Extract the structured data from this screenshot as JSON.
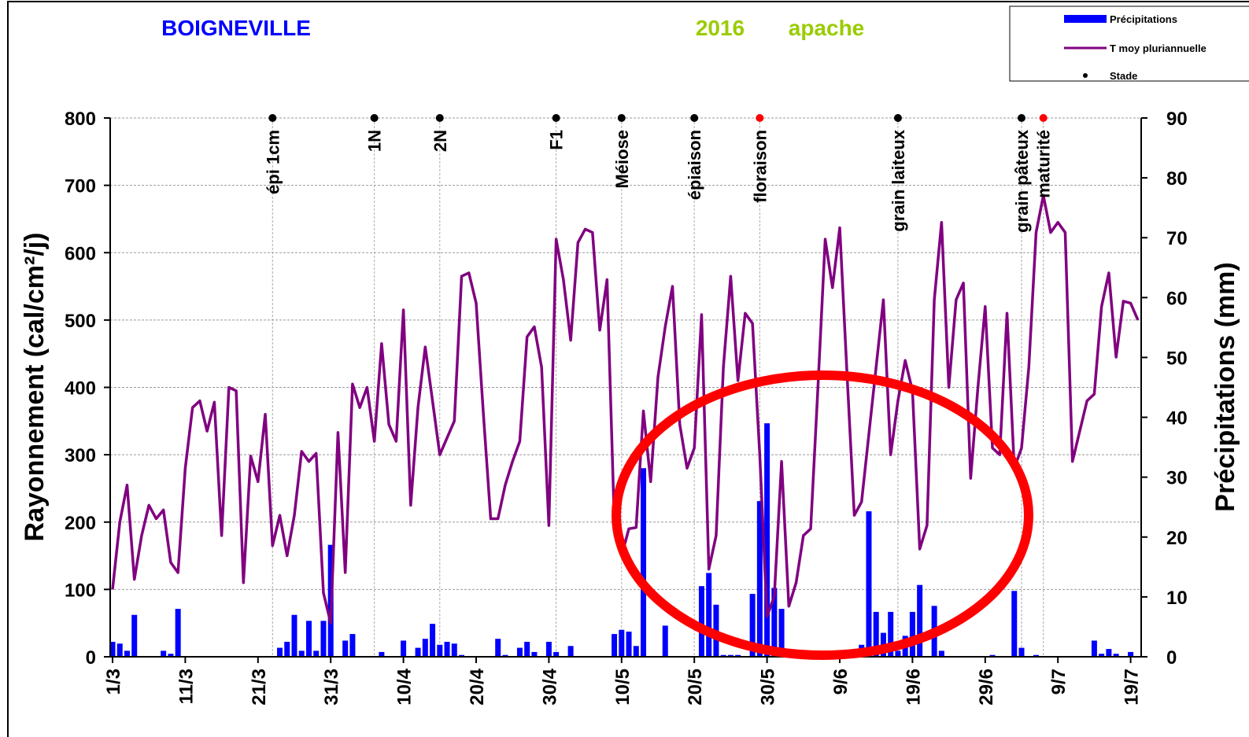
{
  "chart_data": {
    "type": "bar",
    "title": "BOIGNEVILLE",
    "subtitle": [
      "2016",
      "apache"
    ],
    "y_label": "Rayonnement (cal/cm²/j)",
    "y2_label": "Précipitations (mm)",
    "categories": [
      "1/3",
      null,
      null,
      null,
      null,
      null,
      null,
      null,
      null,
      null,
      "11/3",
      null,
      null,
      null,
      null,
      null,
      null,
      null,
      null,
      null,
      "21/3",
      null,
      null,
      null,
      null,
      null,
      null,
      null,
      null,
      null,
      "31/3",
      null,
      null,
      null,
      null,
      null,
      null,
      null,
      null,
      null,
      "10/4",
      null,
      null,
      null,
      null,
      null,
      null,
      null,
      null,
      null,
      "20/4",
      null,
      null,
      null,
      null,
      null,
      null,
      null,
      null,
      null,
      "30/4",
      null,
      null,
      null,
      null,
      null,
      null,
      null,
      null,
      null,
      "10/5",
      null,
      null,
      null,
      null,
      null,
      null,
      null,
      null,
      null,
      "20/5",
      null,
      null,
      null,
      null,
      null,
      null,
      null,
      null,
      null,
      "30/5",
      null,
      null,
      null,
      null,
      null,
      null,
      null,
      null,
      null,
      "9/6",
      null,
      null,
      null,
      null,
      null,
      null,
      null,
      null,
      null,
      "19/6",
      null,
      null,
      null,
      null,
      null,
      null,
      null,
      null,
      null,
      "29/6",
      null,
      null,
      null,
      null,
      null,
      null,
      null,
      null,
      null,
      "9/7",
      null,
      null,
      null,
      null,
      null,
      null,
      null,
      null,
      null,
      "19/7",
      null
    ],
    "series": [
      {
        "name": "Précipitations",
        "type": "bar",
        "axis": "y2",
        "color": "#0000ff",
        "values": [
          2.5,
          2.2,
          1,
          7,
          0,
          0,
          0,
          1,
          0.5,
          8,
          0,
          0,
          0,
          0,
          0,
          0,
          0,
          0,
          0,
          0,
          0,
          0,
          0,
          1.5,
          2.5,
          7,
          1,
          6,
          1,
          6,
          18.7,
          0,
          2.7,
          3.8,
          0,
          0,
          0,
          0.8,
          0,
          0,
          2.7,
          0,
          1.5,
          3,
          5.5,
          2,
          2.5,
          2.2,
          0.3,
          0,
          0,
          0,
          0,
          3,
          0.3,
          0,
          1.5,
          2.5,
          0.8,
          0,
          2.5,
          0.8,
          0,
          1.8,
          0,
          0,
          0,
          0,
          0,
          3.8,
          4.5,
          4.2,
          1.8,
          31.5,
          0,
          0,
          5.2,
          0,
          0,
          0,
          0,
          11.8,
          14,
          8.7,
          0.3,
          0.3,
          0.3,
          0,
          10.5,
          26,
          39,
          11.5,
          8,
          0.8,
          0.3,
          0.3,
          0.3,
          0,
          0,
          0,
          0,
          0.3,
          0,
          2,
          24.3,
          7.5,
          4,
          7.5,
          1,
          3.5,
          7.5,
          12,
          0,
          8.5,
          1,
          0,
          0,
          0,
          0,
          0,
          0,
          0.3,
          0,
          0,
          11,
          1.5,
          0,
          0.3,
          0,
          0,
          0,
          0,
          0,
          0,
          0,
          2.7,
          0.5,
          1.3,
          0.5,
          0,
          0.8,
          0
        ]
      },
      {
        "name": "T moy pluriannuelle",
        "type": "line",
        "color": "#800080",
        "values": [
          100,
          200,
          255,
          115,
          180,
          225,
          205,
          218,
          140,
          125,
          280,
          370,
          380,
          335,
          378,
          180,
          400,
          395,
          110,
          298,
          260,
          360,
          165,
          210,
          150,
          210,
          305,
          290,
          302,
          95,
          50,
          333,
          125,
          405,
          370,
          400,
          320,
          465,
          345,
          320,
          515,
          225,
          370,
          460,
          380,
          300,
          325,
          350,
          565,
          570,
          525,
          360,
          205,
          205,
          255,
          290,
          320,
          475,
          490,
          430,
          195,
          620,
          560,
          470,
          615,
          635,
          630,
          485,
          560,
          200,
          150,
          190,
          192,
          365,
          260,
          415,
          490,
          550,
          345,
          280,
          310,
          508,
          130,
          180,
          430,
          565,
          410,
          510,
          495,
          300,
          60,
          90,
          290,
          75,
          110,
          180,
          190,
          400,
          620,
          548,
          637,
          420,
          210,
          230,
          330,
          430,
          530,
          300,
          380,
          440,
          395,
          160,
          195,
          530,
          645,
          400,
          530,
          555,
          265,
          400,
          520,
          310,
          300,
          510,
          280,
          310,
          430,
          630,
          685,
          630,
          645,
          630,
          290,
          335,
          380,
          390,
          520,
          570,
          445,
          528,
          525,
          500
        ]
      }
    ],
    "stages": {
      "name": "Stade",
      "color": "#000000",
      "labels": [
        "épi 1cm",
        "1N",
        "2N",
        "F1",
        "Méiose",
        "épiaison",
        "floraison",
        "grain laiteux",
        "grain pâteux",
        "maturité"
      ],
      "x": [
        22,
        36,
        45,
        61,
        70,
        80,
        89,
        108,
        125,
        128
      ],
      "colors": [
        "#000000",
        "#000000",
        "#000000",
        "#000000",
        "#000000",
        "#000000",
        "#ff0000",
        "#000000",
        "#000000",
        "#ff0000"
      ]
    },
    "ylim": [
      0,
      800
    ],
    "yticks": [
      0,
      100,
      200,
      300,
      400,
      500,
      600,
      700,
      800
    ],
    "y2lim": [
      0,
      90
    ],
    "y2ticks": [
      0,
      10,
      20,
      30,
      40,
      50,
      60,
      70,
      80,
      90
    ],
    "grid": true
  }
}
